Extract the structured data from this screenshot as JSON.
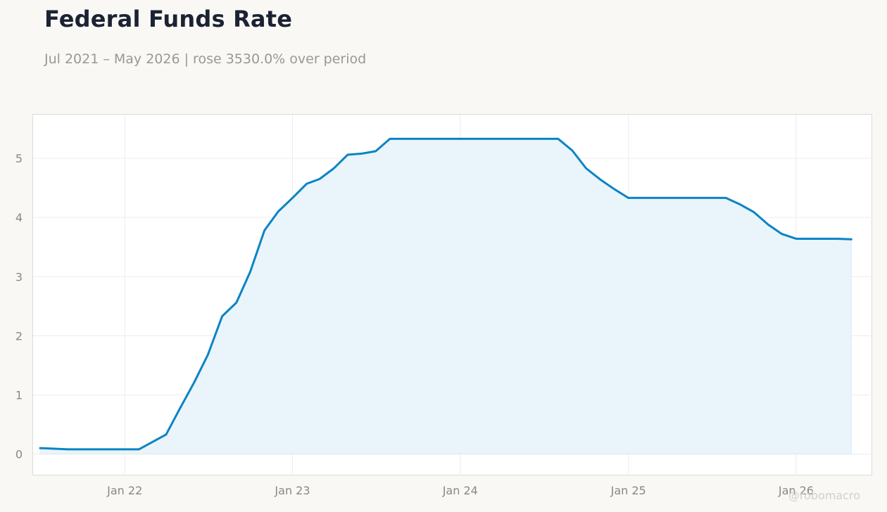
{
  "header": {
    "title": "Federal Funds Rate",
    "subtitle": "Jul 2021 – May 2026 | rose 3530.0% over period"
  },
  "watermark": "@robomacro",
  "colors": {
    "line": "#0a84c4",
    "fill": "#eaf4fb",
    "grid": "#ececec",
    "frame": "#dedbd3"
  },
  "chart_data": {
    "type": "area",
    "title": "Federal Funds Rate",
    "xlabel": "",
    "ylabel": "",
    "grid": true,
    "legend": "none",
    "x_range": [
      "2021-06-14",
      "2026-06-14"
    ],
    "ylim": [
      -0.35,
      5.75
    ],
    "y_ticks": [
      0,
      1,
      2,
      3,
      4,
      5
    ],
    "x_ticks": [
      {
        "date": "2022-01-01",
        "label": "Jan 22"
      },
      {
        "date": "2023-01-01",
        "label": "Jan 23"
      },
      {
        "date": "2024-01-01",
        "label": "Jan 24"
      },
      {
        "date": "2025-01-01",
        "label": "Jan 25"
      },
      {
        "date": "2026-01-01",
        "label": "Jan 26"
      }
    ],
    "series": [
      {
        "points": [
          [
            "2021-07-01",
            0.1
          ],
          [
            "2021-08-31",
            0.08
          ],
          [
            "2021-11-01",
            0.08
          ],
          [
            "2022-02-01",
            0.08
          ],
          [
            "2022-04-01",
            0.33
          ],
          [
            "2022-05-01",
            0.77
          ],
          [
            "2022-06-01",
            1.21
          ],
          [
            "2022-07-01",
            1.68
          ],
          [
            "2022-08-01",
            2.33
          ],
          [
            "2022-09-01",
            2.56
          ],
          [
            "2022-10-01",
            3.08
          ],
          [
            "2022-11-01",
            3.78
          ],
          [
            "2022-12-01",
            4.1
          ],
          [
            "2023-01-01",
            4.33
          ],
          [
            "2023-02-01",
            4.57
          ],
          [
            "2023-03-01",
            4.65
          ],
          [
            "2023-04-01",
            4.83
          ],
          [
            "2023-05-01",
            5.06
          ],
          [
            "2023-06-01",
            5.08
          ],
          [
            "2023-07-01",
            5.12
          ],
          [
            "2023-08-01",
            5.33
          ],
          [
            "2024-08-01",
            5.33
          ],
          [
            "2024-09-01",
            5.13
          ],
          [
            "2024-10-01",
            4.83
          ],
          [
            "2024-11-01",
            4.64
          ],
          [
            "2024-12-01",
            4.48
          ],
          [
            "2025-01-01",
            4.33
          ],
          [
            "2025-08-01",
            4.33
          ],
          [
            "2025-09-01",
            4.22
          ],
          [
            "2025-10-01",
            4.09
          ],
          [
            "2025-11-01",
            3.88
          ],
          [
            "2025-12-01",
            3.72
          ],
          [
            "2026-01-01",
            3.64
          ],
          [
            "2026-04-01",
            3.64
          ],
          [
            "2026-05-01",
            3.63
          ]
        ]
      }
    ]
  }
}
